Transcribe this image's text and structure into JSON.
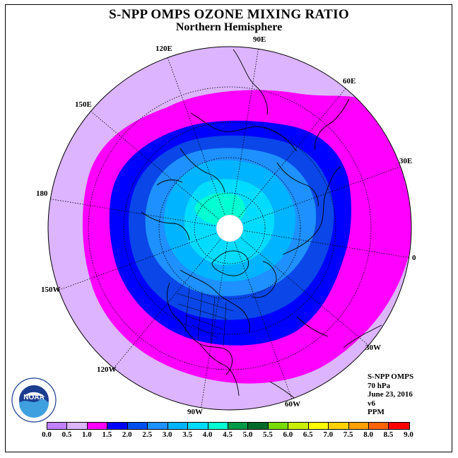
{
  "title": "S-NPP OMPS OZONE MIXING RATIO",
  "subtitle": "Northern Hemisphere",
  "longitude_labels": [
    "90E",
    "60E",
    "30E",
    "0",
    "30W",
    "60W",
    "90W",
    "120W",
    "150W",
    "180",
    "150E",
    "120E"
  ],
  "info": {
    "instrument": "S-NPP OMPS",
    "level": "70 hPa",
    "date": "June 23, 2016",
    "version": "v6",
    "unit": "PPM"
  },
  "logo": {
    "text": "NOAA",
    "ring_text": "NATIONAL OCEANIC AND ATMOSPHERIC ADMINISTRATION · U.S. DEPARTMENT OF COMMERCE"
  },
  "colorbar": {
    "ticks": [
      "0.0",
      "0.5",
      "1.0",
      "1.5",
      "2.0",
      "2.5",
      "3.0",
      "3.5",
      "4.0",
      "4.5",
      "5.0",
      "5.5",
      "6.0",
      "6.5",
      "7.0",
      "7.5",
      "8.0",
      "8.5",
      "9.0"
    ],
    "colors": [
      "#c080ff",
      "#dcb4ff",
      "#ff00ff",
      "#0000ff",
      "#0050f0",
      "#1e90ff",
      "#00b4ff",
      "#00dcff",
      "#00ffd2",
      "#009a46",
      "#006a28",
      "#78dc00",
      "#c8f000",
      "#ffff00",
      "#ffd200",
      "#ffa000",
      "#ff6400",
      "#ff0000",
      "#8b5a2b"
    ]
  },
  "chart_data": {
    "type": "map",
    "projection": "north polar stereographic",
    "field": "ozone mixing ratio",
    "contour_levels": [
      0.0,
      0.5,
      1.0,
      1.5,
      2.0,
      2.5,
      3.0,
      3.5,
      4.0,
      4.5,
      5.0,
      5.5,
      6.0,
      6.5,
      7.0,
      7.5,
      8.0,
      8.5,
      9.0
    ],
    "bands_outer_to_inner": [
      "0.5-1.0",
      "1.0-1.5",
      "1.5-2.0",
      "2.0-2.5",
      "2.5-3.0",
      "3.0-3.5",
      "3.5-4.0"
    ],
    "pole_no_data": true
  }
}
